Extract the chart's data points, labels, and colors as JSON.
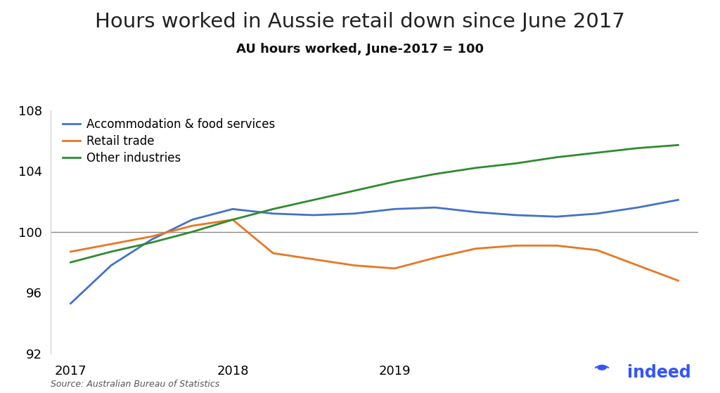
{
  "title": "Hours worked in Aussie retail down since June 2017",
  "subtitle": "AU hours worked, June-2017 = 100",
  "source": "Source: Australian Bureau of Statistics",
  "ylim": [
    92,
    108
  ],
  "yticks": [
    92,
    96,
    100,
    104,
    108
  ],
  "background_color": "#ffffff",
  "reference_line": 100,
  "series": {
    "accommodation": {
      "label": "Accommodation & food services",
      "color": "#4472c4",
      "data": [
        95.3,
        97.8,
        99.5,
        100.8,
        101.5,
        101.2,
        101.1,
        101.2,
        101.5,
        101.6,
        101.3,
        101.1,
        101.0,
        101.2,
        101.6,
        102.1
      ]
    },
    "retail": {
      "label": "Retail trade",
      "color": "#e87722",
      "data": [
        98.7,
        99.2,
        99.7,
        100.4,
        100.8,
        98.6,
        98.2,
        97.8,
        97.6,
        98.3,
        98.9,
        99.1,
        99.1,
        98.8,
        97.8,
        96.8
      ]
    },
    "other": {
      "label": "Other industries",
      "color": "#2e8b2e",
      "data": [
        98.0,
        98.7,
        99.3,
        100.0,
        100.8,
        101.5,
        102.1,
        102.7,
        103.3,
        103.8,
        104.2,
        104.5,
        104.9,
        105.2,
        105.5,
        105.7
      ]
    }
  },
  "indeed_color": "#3355ff",
  "title_fontsize": 21,
  "subtitle_fontsize": 13,
  "source_fontsize": 9,
  "legend_fontsize": 12,
  "tick_fontsize": 13,
  "n_points": 16,
  "xtick_positions_data": [
    0,
    4,
    8
  ],
  "xtick_labels": [
    "2017",
    "2018",
    "2019"
  ]
}
